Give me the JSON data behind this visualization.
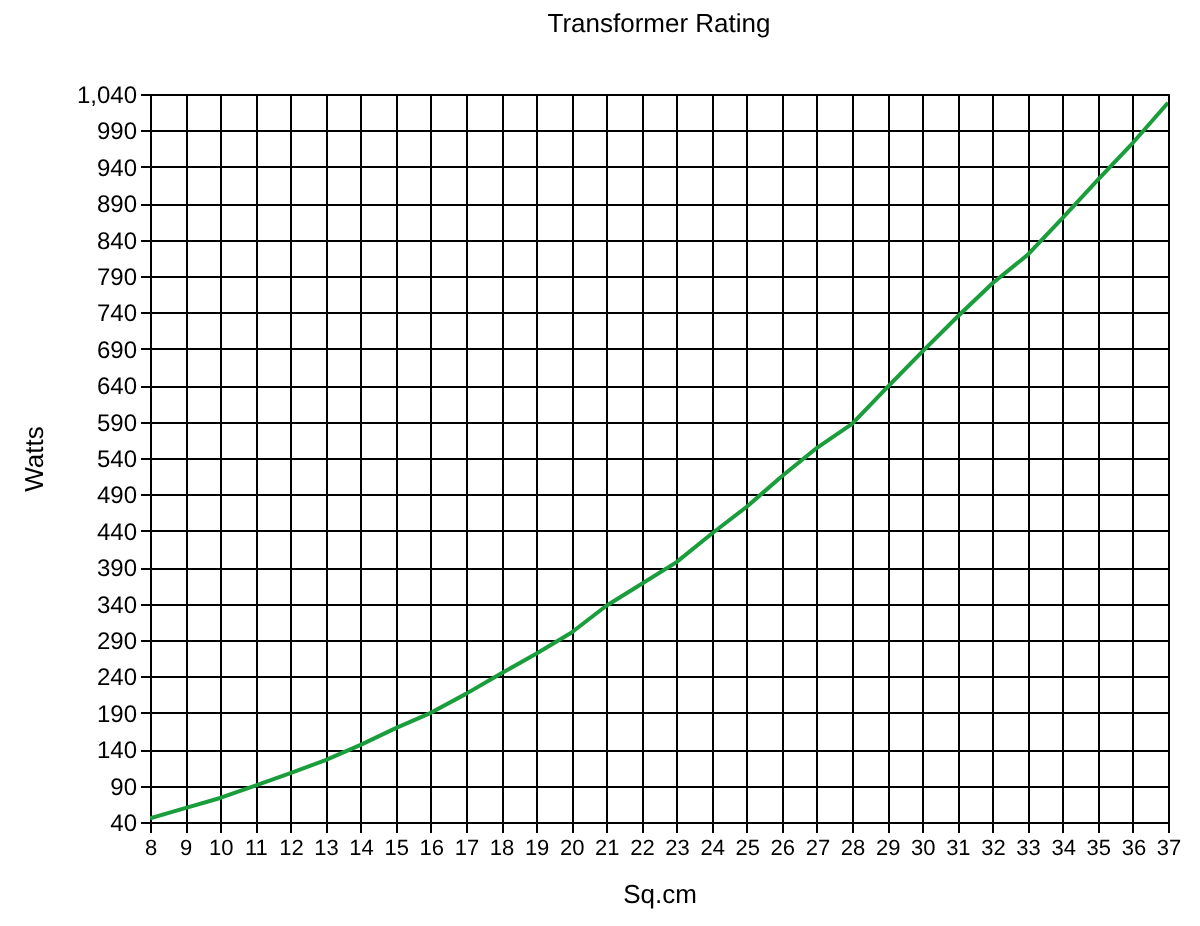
{
  "chart_data": {
    "type": "line",
    "title": "Transformer Rating",
    "xlabel": "Sq.cm",
    "ylabel": "Watts",
    "x": [
      8,
      9,
      10,
      11,
      12,
      13,
      14,
      15,
      16,
      17,
      18,
      19,
      20,
      21,
      22,
      23,
      24,
      25,
      26,
      27,
      28,
      29,
      30,
      31,
      32,
      33,
      34,
      35,
      36,
      37
    ],
    "series": [
      {
        "color": "#1a9e3c",
        "values": [
          45,
          59,
          73,
          90,
          107,
          125,
          146,
          169,
          190,
          216,
          244,
          271,
          300,
          337,
          367,
          397,
          436,
          473,
          515,
          554,
          587,
          637,
          686,
          734,
          780,
          819,
          870,
          922,
          973,
          1028
        ]
      }
    ],
    "xlim": [
      8,
      37
    ],
    "xticks": [
      8,
      9,
      10,
      11,
      12,
      13,
      14,
      15,
      16,
      17,
      18,
      19,
      20,
      21,
      22,
      23,
      24,
      25,
      26,
      27,
      28,
      29,
      30,
      31,
      32,
      33,
      34,
      35,
      36,
      37
    ],
    "ylim": [
      40,
      1040
    ],
    "yticks": [
      40,
      90,
      140,
      190,
      240,
      290,
      340,
      390,
      440,
      490,
      540,
      590,
      640,
      690,
      740,
      790,
      840,
      890,
      940,
      990,
      {
        "value": 1040,
        "label": "1,040"
      }
    ],
    "grid": true,
    "marker": "none",
    "line_style": "solid"
  }
}
